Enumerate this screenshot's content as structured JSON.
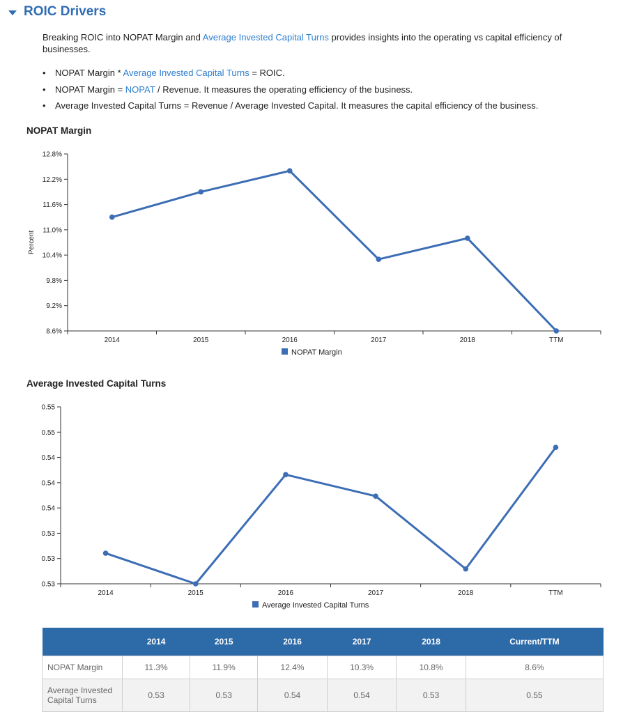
{
  "section": {
    "title": "ROIC Drivers",
    "intro_prefix": "Breaking ROIC into NOPAT Margin and ",
    "intro_link": "Average Invested Capital Turns",
    "intro_suffix": " provides insights into the operating vs capital efficiency of businesses."
  },
  "bullets": [
    {
      "pre": "NOPAT Margin * ",
      "link": "Average Invested Capital Turns",
      "post": " = ROIC."
    },
    {
      "pre": "NOPAT Margin = ",
      "link": "NOPAT",
      "post": " / Revenue. It measures the operating efficiency of the business."
    },
    {
      "pre": "Average Invested Capital Turns = Revenue / Average Invested Capital. It measures the capital efficiency of the business.",
      "link": "",
      "post": ""
    }
  ],
  "colors": {
    "accent": "#2f6db5",
    "link": "#2f7fd0",
    "series": "#3c6db5",
    "table_header": "#2d6aa8"
  },
  "chart_data": [
    {
      "type": "line",
      "title": "NOPAT Margin",
      "ylabel": "Percent",
      "xlabel": "",
      "categories": [
        "2014",
        "2015",
        "2016",
        "2017",
        "2018",
        "TTM"
      ],
      "series": [
        {
          "name": "NOPAT Margin",
          "values": [
            11.3,
            11.9,
            12.4,
            10.3,
            10.8,
            8.6
          ]
        }
      ],
      "ylim": [
        8.6,
        12.8
      ],
      "yticks": [
        "12.8%",
        "12.2%",
        "11.6%",
        "11.0%",
        "10.4%",
        "9.8%",
        "9.2%",
        "8.6%"
      ],
      "grid": false,
      "legend": "bottom"
    },
    {
      "type": "line",
      "title": "Average Invested Capital Turns",
      "ylabel": "",
      "xlabel": "",
      "categories": [
        "2014",
        "2015",
        "2016",
        "2017",
        "2018",
        "TTM"
      ],
      "series": [
        {
          "name": "Average Invested Capital Turns",
          "values": [
            0.5337,
            0.53,
            0.5432,
            0.5406,
            0.5318,
            0.5465
          ]
        }
      ],
      "ylim": [
        0.53,
        0.5514
      ],
      "yticks": [
        "0.55",
        "0.55",
        "0.54",
        "0.54",
        "0.54",
        "0.53",
        "0.53",
        "0.53"
      ],
      "grid": false,
      "legend": "bottom"
    }
  ],
  "table": {
    "headers": [
      "",
      "2014",
      "2015",
      "2016",
      "2017",
      "2018",
      "Current/TTM"
    ],
    "rows": [
      {
        "label": "NOPAT Margin",
        "values": [
          "11.3%",
          "11.9%",
          "12.4%",
          "10.3%",
          "10.8%",
          "8.6%"
        ]
      },
      {
        "label": "Average Invested Capital Turns",
        "values": [
          "0.53",
          "0.53",
          "0.54",
          "0.54",
          "0.53",
          "0.55"
        ]
      }
    ]
  }
}
